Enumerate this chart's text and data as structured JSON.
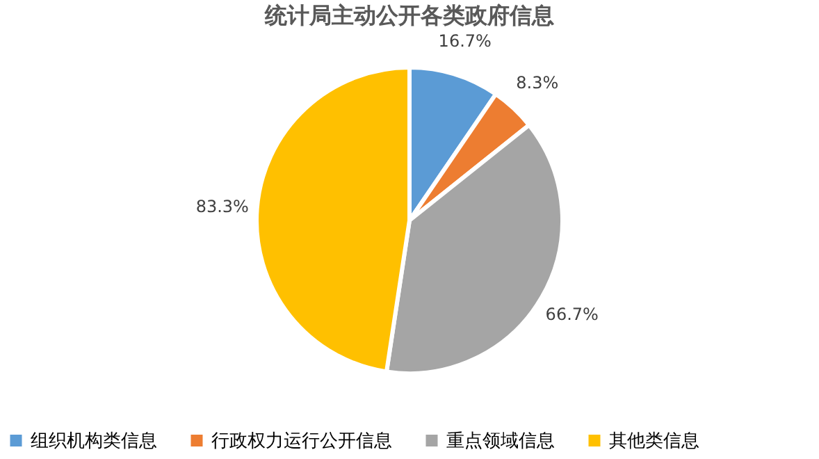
{
  "chart_data": {
    "type": "pie",
    "title": "统计局主动公开各类政府信息",
    "categories": [
      "组织机构类信息",
      "行政权力运行公开信息",
      "重点领域信息",
      "其他类信息"
    ],
    "values": [
      16.7,
      8.3,
      66.7,
      83.3
    ],
    "colors": [
      "#5b9bd5",
      "#ed7d31",
      "#a5a5a5",
      "#ffc000"
    ],
    "value_labels": [
      "16.7%",
      "8.3%",
      "66.7%",
      "83.3%"
    ],
    "legend": "bottom"
  }
}
